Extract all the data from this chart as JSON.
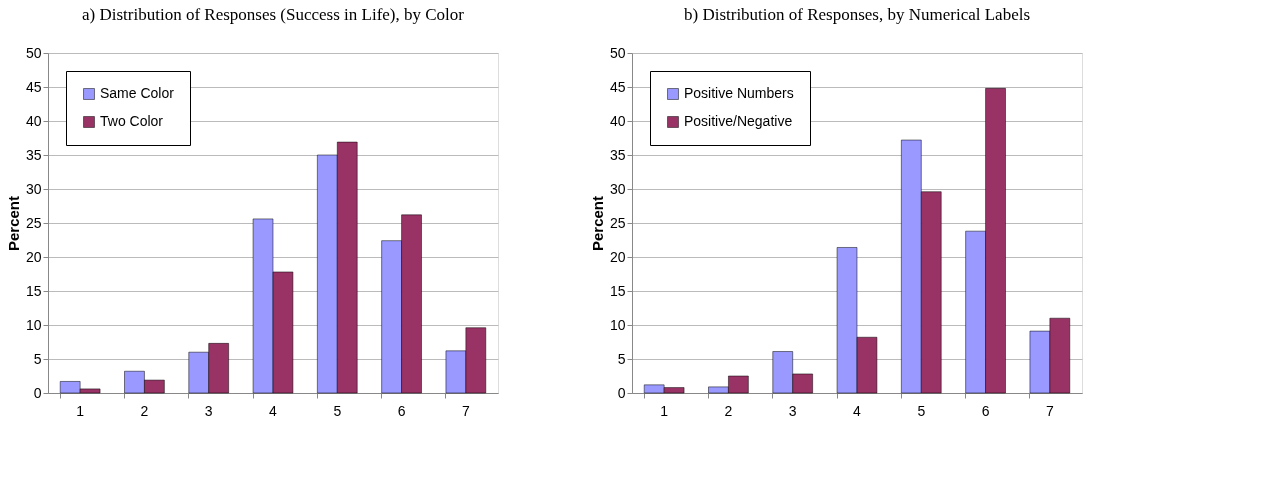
{
  "chart_data": [
    {
      "type": "bar",
      "title": "a)  Distribution of Responses (Success in Life), by Color",
      "ylabel": "Percent",
      "categories": [
        "1",
        "2",
        "3",
        "4",
        "5",
        "6",
        "7"
      ],
      "series": [
        {
          "name": "Same Color",
          "color": "#9999ff",
          "values": [
            1.7,
            3.2,
            6.0,
            25.6,
            35.0,
            22.4,
            6.2
          ]
        },
        {
          "name": "Two Color",
          "color": "#993366",
          "values": [
            0.6,
            1.9,
            7.3,
            17.8,
            36.9,
            26.2,
            9.6
          ]
        }
      ],
      "ylim": [
        0,
        50
      ],
      "yticks": [
        0,
        5,
        10,
        15,
        20,
        25,
        30,
        35,
        40,
        45,
        50
      ],
      "grid": "y",
      "legend": "top left"
    },
    {
      "type": "bar",
      "title": "b) Distribution of Responses, by Numerical Labels",
      "ylabel": "Percent",
      "categories": [
        "1",
        "2",
        "3",
        "4",
        "5",
        "6",
        "7"
      ],
      "series": [
        {
          "name": "Positive Numbers",
          "color": "#9999ff",
          "values": [
            1.2,
            0.9,
            6.1,
            21.4,
            37.2,
            23.8,
            9.1
          ]
        },
        {
          "name": "Positive/Negative",
          "color": "#993366",
          "values": [
            0.8,
            2.5,
            2.8,
            8.2,
            29.6,
            44.8,
            11.0
          ]
        }
      ],
      "ylim": [
        0,
        50
      ],
      "yticks": [
        0,
        5,
        10,
        15,
        20,
        25,
        30,
        35,
        40,
        45,
        50
      ],
      "grid": "y",
      "legend": "top left"
    }
  ]
}
